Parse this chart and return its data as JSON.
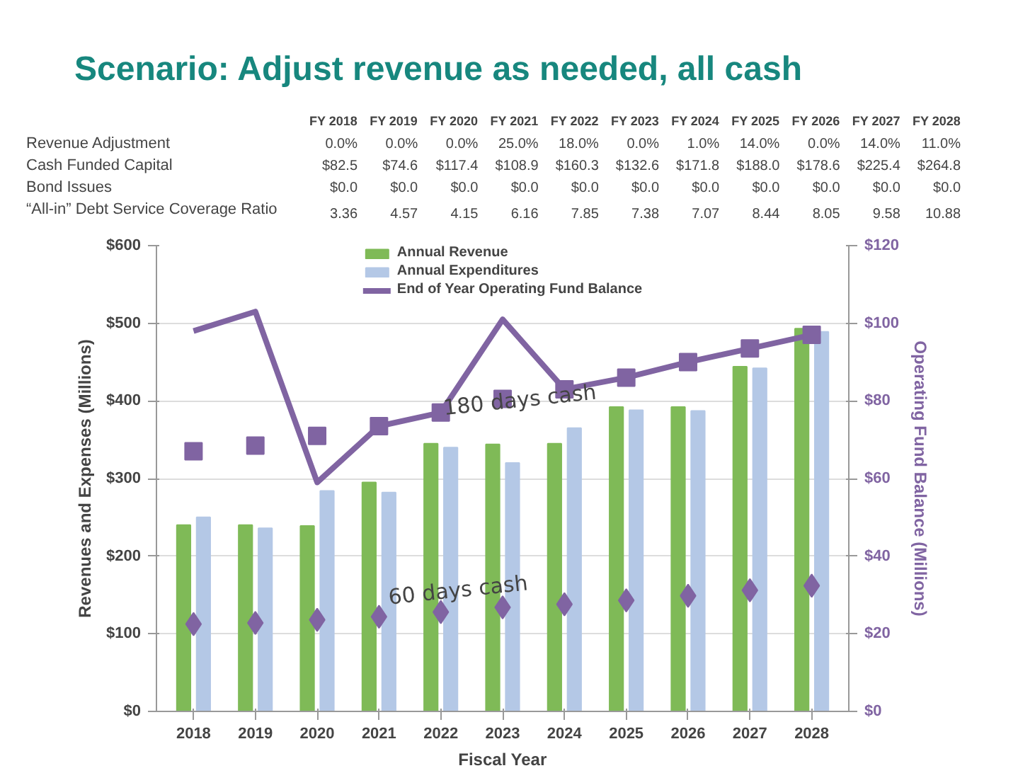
{
  "chart_data": [
    {
      "type": "other",
      "title": "Scenario: Adjust revenue as needed, all cash",
      "categories": [
        "FY 2018",
        "FY 2019",
        "FY 2020",
        "FY 2021",
        "FY 2022",
        "FY 2023",
        "FY 2024",
        "FY 2025",
        "FY 2026",
        "FY 2027",
        "FY 2028"
      ],
      "y_categories": [
        "Revenue Adjustment",
        "Cash Funded Capital",
        "Bond Issues",
        "“All-in” Debt Service Coverage Ratio"
      ],
      "cell_labels": [
        [
          "0.0%",
          "0.0%",
          "0.0%",
          "25.0%",
          "18.0%",
          "0.0%",
          "1.0%",
          "14.0%",
          "0.0%",
          "14.0%",
          "11.0%"
        ],
        [
          "$82.5",
          "$74.6",
          "$117.4",
          "$108.9",
          "$160.3",
          "$132.6",
          "$171.8",
          "$188.0",
          "$178.6",
          "$225.4",
          "$264.8"
        ],
        [
          "$0.0",
          "$0.0",
          "$0.0",
          "$0.0",
          "$0.0",
          "$0.0",
          "$0.0",
          "$0.0",
          "$0.0",
          "$0.0",
          "$0.0"
        ],
        [
          "3.36",
          "4.57",
          "4.15",
          "6.16",
          "7.85",
          "7.38",
          "7.07",
          "8.44",
          "8.05",
          "9.58",
          "10.88"
        ]
      ]
    },
    {
      "type": "bar",
      "xlabel": "Fiscal Year",
      "ylabel": "Revenues and Expenses (Millions)",
      "y2label": "Operating Fund Balance (Millions)",
      "categories": [
        "2018",
        "2019",
        "2020",
        "2021",
        "2022",
        "2023",
        "2024",
        "2025",
        "2026",
        "2027",
        "2028"
      ],
      "ylim": [
        0,
        600
      ],
      "yticks": [
        {
          "value": 0,
          "label": "$0"
        },
        {
          "value": 100,
          "label": "$100"
        },
        {
          "value": 200,
          "label": "$200"
        },
        {
          "value": 300,
          "label": "$300"
        },
        {
          "value": 400,
          "label": "$400"
        },
        {
          "value": 500,
          "label": "$500"
        },
        {
          "value": 600,
          "label": "$600"
        }
      ],
      "y2lim": [
        0,
        120
      ],
      "y2ticks": [
        {
          "value": 0,
          "label": "$0"
        },
        {
          "value": 20,
          "label": "$20"
        },
        {
          "value": 40,
          "label": "$40"
        },
        {
          "value": 60,
          "label": "$60"
        },
        {
          "value": 80,
          "label": "$80"
        },
        {
          "value": 100,
          "label": "$100"
        },
        {
          "value": 120,
          "label": "$120"
        }
      ],
      "grid": "y",
      "legend": "top",
      "series": [
        {
          "name": "Annual Revenue",
          "type": "bar",
          "color": "#7fba57",
          "values": [
            240,
            240,
            239,
            295,
            345,
            344,
            345,
            392,
            392,
            444,
            493
          ]
        },
        {
          "name": "Annual Expenditures",
          "type": "bar",
          "color": "#b4c8e6",
          "values": [
            250,
            236,
            284,
            282,
            340,
            320,
            365,
            388,
            387,
            442,
            489
          ]
        },
        {
          "name": "End of Year Operating Fund Balance",
          "type": "line",
          "axis": "y2",
          "color": "#8064a2",
          "values": [
            98,
            103,
            59,
            73.5,
            77,
            101,
            83,
            86,
            90,
            93.5,
            97
          ]
        },
        {
          "type": "scatter",
          "axis": "y2",
          "marker": "square",
          "color": "#8064a2",
          "values": [
            67,
            68.5,
            71,
            73.5,
            77,
            80.5,
            83,
            86,
            90,
            93.5,
            97
          ]
        },
        {
          "type": "scatter",
          "axis": "y2",
          "marker": "diamond",
          "color": "#8064a2",
          "values": [
            22.5,
            22.8,
            23.6,
            24.4,
            25.6,
            26.8,
            27.6,
            28.6,
            29.8,
            31.2,
            32.4
          ]
        }
      ],
      "annotations": [
        "180 days cash",
        "60 days cash"
      ]
    }
  ]
}
